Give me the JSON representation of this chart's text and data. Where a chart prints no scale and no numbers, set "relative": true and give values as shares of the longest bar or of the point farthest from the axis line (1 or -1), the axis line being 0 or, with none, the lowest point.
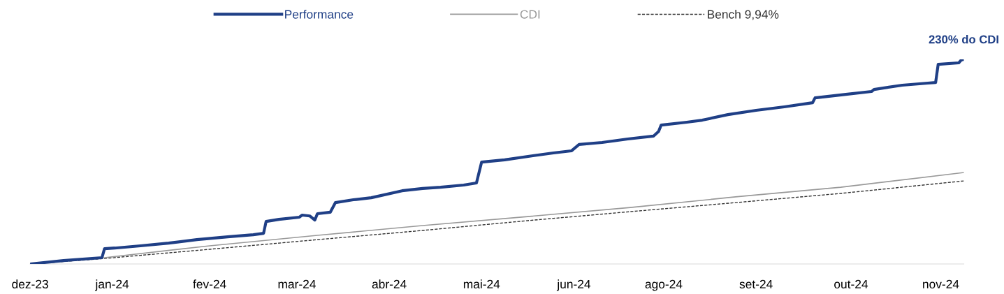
{
  "chart_data": {
    "type": "line",
    "relative": true,
    "legend": "top",
    "grid": false,
    "xlim": [
      "2023-12-01",
      "2024-11-29"
    ],
    "xticks": [
      {
        "value": "2023-12-01",
        "label": "dez-23"
      },
      {
        "value": "2024-01-02",
        "label": "jan-24"
      },
      {
        "value": "2024-02-09",
        "label": "fev-24"
      },
      {
        "value": "2024-03-14",
        "label": "mar-24"
      },
      {
        "value": "2024-04-19",
        "label": "abr-24"
      },
      {
        "value": "2024-05-25",
        "label": "mai-24"
      },
      {
        "value": "2024-06-30",
        "label": "jun-24"
      },
      {
        "value": "2024-08-04",
        "label": "ago-24"
      },
      {
        "value": "2024-09-09",
        "label": "set-24"
      },
      {
        "value": "2024-10-16",
        "label": "out-24"
      },
      {
        "value": "2024-11-20",
        "label": "nov-24"
      }
    ],
    "annotations": [
      {
        "text": "230% do CDI",
        "x": "2024-11-29",
        "y": 1
      }
    ],
    "series": [
      {
        "name": "Performance",
        "color": "#1f3f86",
        "line_style": "solid",
        "x": [
          "2023-12-01",
          "2023-12-14",
          "2023-12-29",
          "2023-12-30",
          "2024-01-03",
          "2024-01-13",
          "2024-01-24",
          "2024-02-04",
          "2024-02-16",
          "2024-02-26",
          "2024-03-01",
          "2024-03-02",
          "2024-03-07",
          "2024-03-15",
          "2024-03-16",
          "2024-03-19",
          "2024-03-21",
          "2024-03-22",
          "2024-03-27",
          "2024-03-29",
          "2024-04-05",
          "2024-04-12",
          "2024-04-24",
          "2024-05-02",
          "2024-05-09",
          "2024-05-18",
          "2024-05-23",
          "2024-05-25",
          "2024-06-03",
          "2024-06-14",
          "2024-06-22",
          "2024-06-29",
          "2024-07-02",
          "2024-07-11",
          "2024-07-21",
          "2024-07-31",
          "2024-08-02",
          "2024-08-03",
          "2024-08-13",
          "2024-08-19",
          "2024-08-29",
          "2024-09-09",
          "2024-09-20",
          "2024-10-01",
          "2024-10-02",
          "2024-10-14",
          "2024-10-24",
          "2024-10-25",
          "2024-11-05",
          "2024-11-15",
          "2024-11-18",
          "2024-11-19",
          "2024-11-27",
          "2024-11-28",
          "2024-11-29"
        ],
        "values": [
          0,
          0.017,
          0.031,
          0.075,
          0.078,
          0.089,
          0.102,
          0.119,
          0.133,
          0.143,
          0.15,
          0.208,
          0.218,
          0.229,
          0.239,
          0.235,
          0.215,
          0.246,
          0.253,
          0.3,
          0.314,
          0.324,
          0.358,
          0.369,
          0.375,
          0.386,
          0.396,
          0.498,
          0.509,
          0.529,
          0.543,
          0.553,
          0.584,
          0.594,
          0.611,
          0.625,
          0.648,
          0.679,
          0.693,
          0.703,
          0.73,
          0.751,
          0.768,
          0.788,
          0.812,
          0.829,
          0.843,
          0.853,
          0.874,
          0.884,
          0.887,
          0.976,
          0.983,
          0.997,
          1
        ]
      },
      {
        "name": "CDI",
        "color": "#999999",
        "line_style": "solid",
        "x": [
          "2023-12-01",
          "2023-12-30",
          "2024-02-09",
          "2024-03-22",
          "2024-05-02",
          "2024-06-12",
          "2024-07-22",
          "2024-09-01",
          "2024-10-12",
          "2024-11-29"
        ],
        "values": [
          0,
          0.031,
          0.089,
          0.14,
          0.188,
          0.232,
          0.276,
          0.328,
          0.375,
          0.447
        ]
      },
      {
        "name": "Bench 9,94%",
        "color": "#333333",
        "line_style": "dashed",
        "x": [
          "2023-12-01",
          "2023-12-30",
          "2024-02-09",
          "2024-03-22",
          "2024-05-02",
          "2024-06-12",
          "2024-07-22",
          "2024-09-01",
          "2024-10-12",
          "2024-11-29"
        ],
        "values": [
          0,
          0.027,
          0.072,
          0.119,
          0.164,
          0.212,
          0.256,
          0.3,
          0.345,
          0.406
        ]
      }
    ]
  }
}
